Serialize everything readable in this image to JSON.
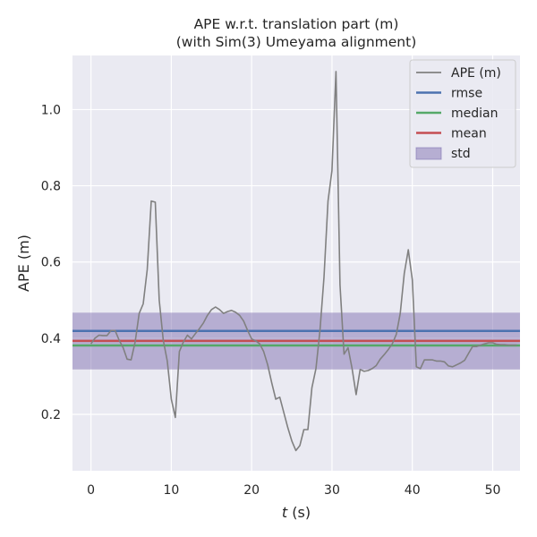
{
  "chart_data": {
    "type": "line",
    "title_line1": "APE w.r.t. translation part (m)",
    "title_line2": "(with Sim(3) Umeyama alignment)",
    "xlabel_var": "t",
    "xlabel_unit": " (s)",
    "ylabel": "APE (m)",
    "xlim": [
      -2.3,
      53.4
    ],
    "ylim": [
      0.052,
      1.142
    ],
    "xticks": [
      0,
      10,
      20,
      30,
      40,
      50
    ],
    "yticks": [
      0.2,
      0.4,
      0.6,
      0.8,
      1.0
    ],
    "ytick_labels": [
      "0.2",
      "0.4",
      "0.6",
      "0.8",
      "1.0"
    ],
    "grid": true,
    "legend_position": "top-right",
    "background_color": "#eaeaf2",
    "series": [
      {
        "name": "APE (m)",
        "color": "#808080",
        "x": [
          0,
          0.5,
          1,
          1.5,
          2,
          2.5,
          3,
          3.5,
          4,
          4.5,
          5,
          5.5,
          6,
          6.5,
          7,
          7.5,
          8,
          8.5,
          9,
          9.5,
          10,
          10.5,
          11,
          11.5,
          12,
          12.5,
          13,
          13.5,
          14,
          14.5,
          15,
          15.5,
          16,
          16.5,
          17,
          17.5,
          18,
          18.5,
          19,
          19.5,
          20,
          20.5,
          21,
          21.5,
          22,
          22.5,
          23,
          23.5,
          24,
          24.5,
          25,
          25.5,
          26,
          26.5,
          27,
          27.5,
          28,
          28.5,
          29,
          29.5,
          30,
          30.5,
          31,
          31.5,
          32,
          32.5,
          33,
          33.5,
          34,
          34.5,
          35,
          35.5,
          36,
          36.5,
          37,
          37.5,
          38,
          38.5,
          39,
          39.5,
          40,
          40.5,
          41,
          41.5,
          42,
          42.5,
          43,
          43.5,
          44,
          44.5,
          45,
          45.5,
          46,
          46.5,
          47,
          47.5,
          48,
          48.5,
          49,
          49.5,
          50,
          50.5,
          51,
          51.5,
          52,
          52.5,
          53
        ],
        "y": [
          0.385,
          0.4,
          0.408,
          0.407,
          0.407,
          0.42,
          0.42,
          0.395,
          0.375,
          0.345,
          0.343,
          0.39,
          0.465,
          0.49,
          0.58,
          0.76,
          0.757,
          0.5,
          0.395,
          0.34,
          0.24,
          0.192,
          0.365,
          0.39,
          0.408,
          0.398,
          0.412,
          0.425,
          0.44,
          0.46,
          0.475,
          0.482,
          0.475,
          0.465,
          0.47,
          0.473,
          0.468,
          0.46,
          0.445,
          0.42,
          0.398,
          0.393,
          0.385,
          0.365,
          0.33,
          0.283,
          0.24,
          0.245,
          0.205,
          0.165,
          0.13,
          0.105,
          0.118,
          0.16,
          0.16,
          0.27,
          0.32,
          0.42,
          0.56,
          0.76,
          0.84,
          1.1,
          0.54,
          0.358,
          0.375,
          0.32,
          0.252,
          0.318,
          0.313,
          0.315,
          0.32,
          0.328,
          0.345,
          0.357,
          0.37,
          0.385,
          0.41,
          0.465,
          0.57,
          0.632,
          0.553,
          0.325,
          0.32,
          0.343,
          0.343,
          0.343,
          0.34,
          0.34,
          0.338,
          0.327,
          0.325,
          0.33,
          0.335,
          0.342,
          0.36,
          0.378,
          0.378,
          0.382,
          0.385,
          0.388,
          0.388,
          0.384,
          0.383,
          0.383,
          0.382,
          0.382,
          0.382
        ]
      }
    ],
    "stats": {
      "rmse": 0.419,
      "median": 0.381,
      "mean": 0.393,
      "std_low": 0.318,
      "std_high": 0.467
    },
    "legend": [
      {
        "label": "APE (m)",
        "kind": "line",
        "color": "#808080"
      },
      {
        "label": "rmse",
        "kind": "line",
        "color": "#4c72b0"
      },
      {
        "label": "median",
        "kind": "line",
        "color": "#55a868"
      },
      {
        "label": "mean",
        "kind": "line",
        "color": "#c44e52"
      },
      {
        "label": "std",
        "kind": "patch",
        "color": "#8172b2"
      }
    ],
    "colors": {
      "rmse": "#4c72b0",
      "median": "#55a868",
      "mean": "#c44e52",
      "std": "#8172b2"
    }
  }
}
